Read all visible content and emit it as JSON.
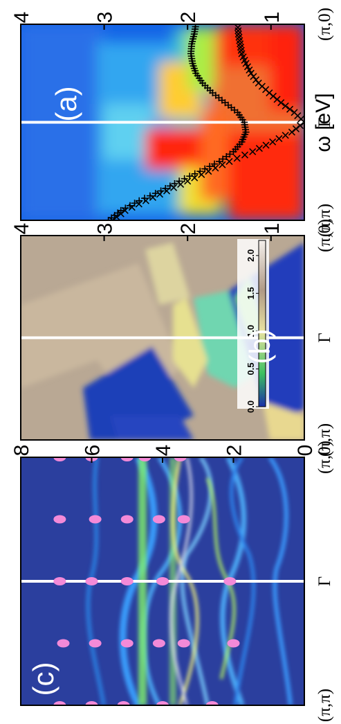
{
  "chart_data": [
    {
      "panel": "a",
      "type": "heatmap",
      "label": "(a)",
      "ylabel": "ω [eV]",
      "ylim": [
        0.6,
        4.0
      ],
      "yticks": [
        "4",
        "3",
        "2",
        "1"
      ],
      "ytick_values": [
        4,
        3,
        2,
        1
      ],
      "xticks": [
        "(π,π)",
        "Γ",
        "(π,0)"
      ],
      "xtick_values": [
        0,
        1,
        2
      ],
      "symbols": {
        "band_plus_high": [
          [
            0,
            2.95
          ],
          [
            0.1,
            2.8
          ],
          [
            0.2,
            2.58
          ],
          [
            0.3,
            2.32
          ],
          [
            0.4,
            2.1
          ],
          [
            0.5,
            1.85
          ],
          [
            0.6,
            1.62
          ],
          [
            0.7,
            1.45
          ],
          [
            0.8,
            1.35
          ],
          [
            0.9,
            1.3
          ],
          [
            1.0,
            1.32
          ],
          [
            1.1,
            1.4
          ],
          [
            1.2,
            1.55
          ],
          [
            1.3,
            1.7
          ],
          [
            1.4,
            1.82
          ],
          [
            1.5,
            1.9
          ],
          [
            1.6,
            1.94
          ],
          [
            1.7,
            1.96
          ],
          [
            1.8,
            1.95
          ],
          [
            1.9,
            1.92
          ],
          [
            2.0,
            1.9
          ]
        ],
        "band_x_low": [
          [
            0,
            2.9
          ],
          [
            0.1,
            2.75
          ],
          [
            0.2,
            2.5
          ],
          [
            0.3,
            2.25
          ],
          [
            0.4,
            2.0
          ],
          [
            0.5,
            1.75
          ],
          [
            0.6,
            1.5
          ],
          [
            0.7,
            1.22
          ],
          [
            0.8,
            0.98
          ],
          [
            0.9,
            0.75
          ],
          [
            1.0,
            0.6
          ]
        ],
        "band_x_right": [
          [
            1.0,
            0.6
          ],
          [
            1.1,
            0.72
          ],
          [
            1.2,
            0.88
          ],
          [
            1.3,
            1.02
          ],
          [
            1.4,
            1.15
          ],
          [
            1.5,
            1.24
          ],
          [
            1.6,
            1.3
          ],
          [
            1.7,
            1.35
          ],
          [
            1.8,
            1.37
          ],
          [
            1.9,
            1.39
          ],
          [
            2.0,
            1.4
          ]
        ]
      }
    },
    {
      "panel": "b",
      "type": "heatmap",
      "label": "(b)",
      "ylim": [
        0.6,
        4.0
      ],
      "yticks": [
        "4",
        "3",
        "2",
        "1"
      ],
      "ytick_values": [
        4,
        3,
        2,
        1
      ],
      "xticks": [
        "(π,π)",
        "Γ",
        "(π,0)"
      ],
      "xtick_values": [
        0,
        1,
        2
      ],
      "colorbar": {
        "ticks": [
          "2.0",
          "1.5",
          "1.0",
          "0.5",
          "0.0"
        ],
        "tick_values": [
          2.0,
          1.5,
          1.0,
          0.5,
          0.0
        ],
        "range": [
          0,
          2.2
        ]
      }
    },
    {
      "panel": "c",
      "type": "heatmap",
      "label": "(c)",
      "ylim": [
        0,
        8
      ],
      "yticks": [
        "8",
        "6",
        "4",
        "2",
        "0"
      ],
      "ytick_values": [
        8,
        6,
        4,
        2,
        0
      ],
      "xticks": [
        "(π,π)",
        "Γ",
        "(π,0)"
      ],
      "xtick_values": [
        0,
        1,
        2
      ],
      "markers": [
        [
          0,
          6.9
        ],
        [
          0,
          6.0
        ],
        [
          0,
          5.1
        ],
        [
          0,
          4.0
        ],
        [
          0,
          2.6
        ],
        [
          0.5,
          6.8
        ],
        [
          0.5,
          5.9
        ],
        [
          0.5,
          5.0
        ],
        [
          0.5,
          4.1
        ],
        [
          0.5,
          3.4
        ],
        [
          0.5,
          2.0
        ],
        [
          1.0,
          6.9
        ],
        [
          1.0,
          6.0
        ],
        [
          1.0,
          5.0
        ],
        [
          1.0,
          4.0
        ],
        [
          1.0,
          2.1
        ],
        [
          1.5,
          6.9
        ],
        [
          1.5,
          5.9
        ],
        [
          1.5,
          5.0
        ],
        [
          1.5,
          4.1
        ],
        [
          1.5,
          3.4
        ],
        [
          2.0,
          6.9
        ],
        [
          2.0,
          6.0
        ],
        [
          2.0,
          5.0
        ],
        [
          2.0,
          4.5
        ],
        [
          2.0,
          3.5
        ]
      ],
      "colors": {
        "background": "#2b3f9e",
        "marker": "#f38ad8",
        "band": "#4fa3ff",
        "band_bright": "#9cf04a"
      }
    }
  ]
}
